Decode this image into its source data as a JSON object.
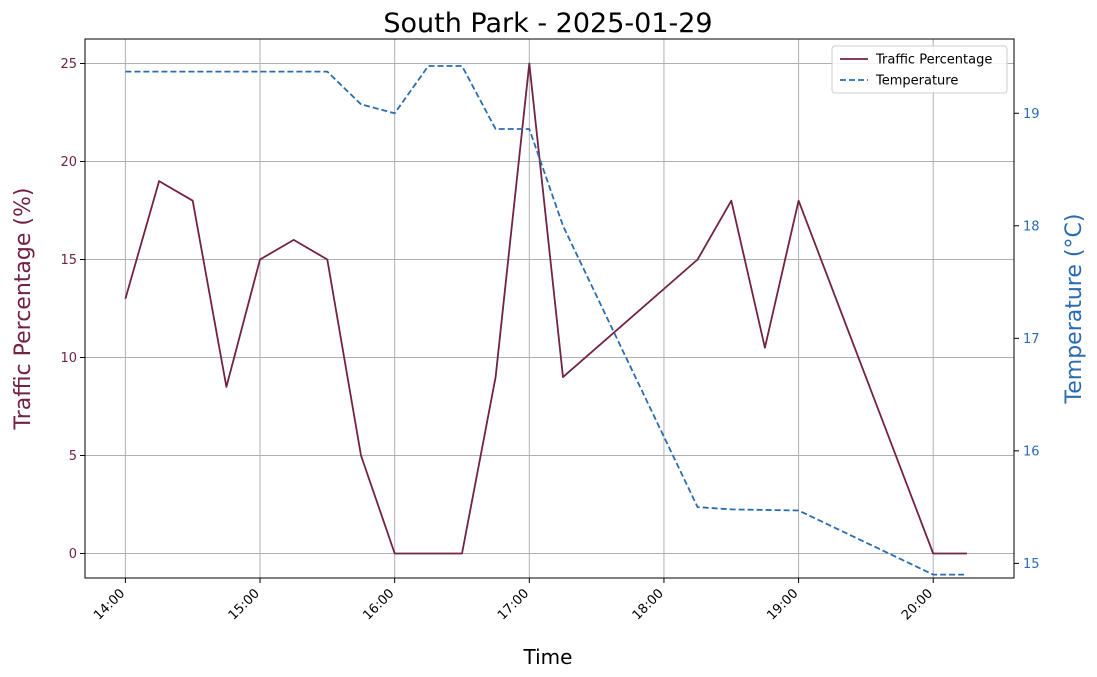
{
  "chart_data": {
    "type": "line",
    "title": "South Park - 2025-01-29",
    "xlabel": "Time",
    "ylabel_left": "Traffic Percentage (%)",
    "ylabel_right": "Temperature (°C)",
    "x_tick_labels": [
      "14:00",
      "15:00",
      "16:00",
      "17:00",
      "18:00",
      "19:00",
      "20:00"
    ],
    "left_y_ticks": [
      0,
      5,
      10,
      15,
      20,
      25
    ],
    "right_y_ticks": [
      15,
      16,
      17,
      18,
      19
    ],
    "left_ylim": [
      -1.25,
      26.25
    ],
    "right_ylim": [
      14.87,
      19.66
    ],
    "x_range_hours": [
      13.7,
      20.6
    ],
    "grid": true,
    "legend_position": "top-right",
    "series": [
      {
        "name": "Traffic Percentage",
        "axis": "left",
        "color": "#722343",
        "style": "solid",
        "x": [
          "14:00",
          "14:15",
          "14:30",
          "14:45",
          "15:00",
          "15:15",
          "15:30",
          "15:45",
          "16:00",
          "16:15",
          "16:30",
          "16:45",
          "17:00",
          "17:15",
          "18:15",
          "18:30",
          "18:45",
          "19:00",
          "20:00",
          "20:15"
        ],
        "values": [
          13,
          19,
          18,
          8.5,
          15,
          16,
          15,
          5,
          0,
          0,
          0,
          9,
          25,
          9,
          15,
          18,
          10.5,
          18,
          0,
          0
        ]
      },
      {
        "name": "Temperature",
        "axis": "right",
        "color": "#2b6cb0",
        "style": "dashed",
        "x": [
          "14:00",
          "14:30",
          "15:00",
          "15:30",
          "15:45",
          "16:00",
          "16:15",
          "16:30",
          "16:45",
          "17:00",
          "17:15",
          "18:15",
          "18:30",
          "19:00",
          "20:00",
          "20:15"
        ],
        "values": [
          19.37,
          19.37,
          19.37,
          19.37,
          19.08,
          19.0,
          19.42,
          19.42,
          18.86,
          18.86,
          18.0,
          15.5,
          15.48,
          15.47,
          14.9,
          14.9
        ]
      }
    ],
    "colors": {
      "left_axis": "#722343",
      "right_axis": "#2b6cb0",
      "grid": "#b0b0b0"
    }
  }
}
